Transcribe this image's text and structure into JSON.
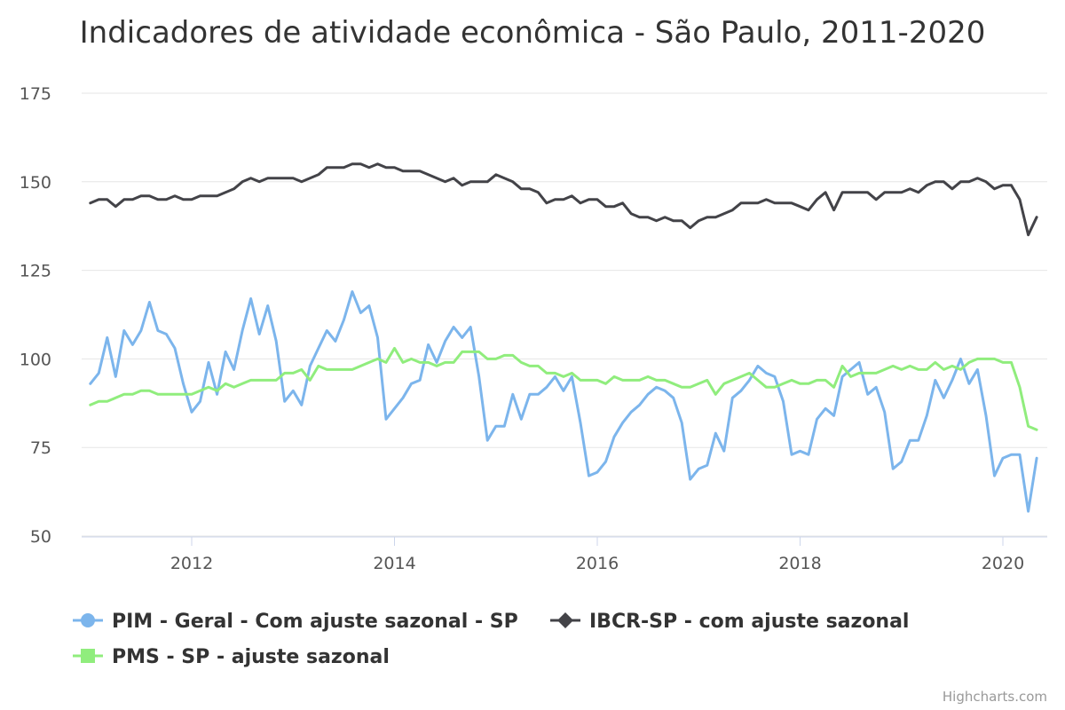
{
  "chart_data": {
    "type": "line",
    "title": "Indicadores de atividade econômica - São Paulo, 2011-2020",
    "x_start": "2011-01",
    "x_ticks": [
      "2012",
      "2014",
      "2016",
      "2018",
      "2020"
    ],
    "y_ticks": [
      50,
      75,
      100,
      125,
      150,
      175
    ],
    "ylim": [
      50,
      175
    ],
    "grid": true,
    "legend_position": "bottom",
    "credits": "Highcharts.com",
    "series": [
      {
        "name": "PIM - Geral - Com ajuste sazonal - SP",
        "color": "#7cb5ec",
        "marker": "circle",
        "values": [
          93,
          96,
          106,
          95,
          108,
          104,
          108,
          116,
          108,
          107,
          103,
          93,
          85,
          88,
          99,
          90,
          102,
          97,
          108,
          117,
          107,
          115,
          105,
          88,
          91,
          87,
          98,
          103,
          108,
          105,
          111,
          119,
          113,
          115,
          106,
          83,
          86,
          89,
          93,
          94,
          104,
          99,
          105,
          109,
          106,
          109,
          95,
          77,
          81,
          81,
          90,
          83,
          90,
          90,
          92,
          95,
          91,
          95,
          82,
          67,
          68,
          71,
          78,
          82,
          85,
          87,
          90,
          92,
          91,
          89,
          82,
          66,
          69,
          70,
          79,
          74,
          89,
          91,
          94,
          98,
          96,
          95,
          88,
          73,
          74,
          73,
          83,
          86,
          84,
          95,
          97,
          99,
          90,
          92,
          85,
          69,
          71,
          77,
          77,
          84,
          94,
          89,
          94,
          100,
          93,
          97,
          84,
          67,
          72,
          73,
          73,
          57,
          72
        ]
      },
      {
        "name": "IBCR-SP - com ajuste sazonal",
        "color": "#434348",
        "marker": "diamond",
        "values": [
          144,
          145,
          145,
          143,
          145,
          145,
          146,
          146,
          145,
          145,
          146,
          145,
          145,
          146,
          146,
          146,
          147,
          148,
          150,
          151,
          150,
          151,
          151,
          151,
          151,
          150,
          151,
          152,
          154,
          154,
          154,
          155,
          155,
          154,
          155,
          154,
          154,
          153,
          153,
          153,
          152,
          151,
          150,
          151,
          149,
          150,
          150,
          150,
          152,
          151,
          150,
          148,
          148,
          147,
          144,
          145,
          145,
          146,
          144,
          145,
          145,
          143,
          143,
          144,
          141,
          140,
          140,
          139,
          140,
          139,
          139,
          137,
          139,
          140,
          140,
          141,
          142,
          144,
          144,
          144,
          145,
          144,
          144,
          144,
          143,
          142,
          145,
          147,
          142,
          147,
          147,
          147,
          147,
          145,
          147,
          147,
          147,
          148,
          147,
          149,
          150,
          150,
          148,
          150,
          150,
          151,
          150,
          148,
          149,
          149,
          145,
          135,
          140
        ]
      },
      {
        "name": "PMS - SP - ajuste sazonal",
        "color": "#90ed7d",
        "marker": "square",
        "values": [
          87,
          88,
          88,
          89,
          90,
          90,
          91,
          91,
          90,
          90,
          90,
          90,
          90,
          91,
          92,
          91,
          93,
          92,
          93,
          94,
          94,
          94,
          94,
          96,
          96,
          97,
          94,
          98,
          97,
          97,
          97,
          97,
          98,
          99,
          100,
          99,
          103,
          99,
          100,
          99,
          99,
          98,
          99,
          99,
          102,
          102,
          102,
          100,
          100,
          101,
          101,
          99,
          98,
          98,
          96,
          96,
          95,
          96,
          94,
          94,
          94,
          93,
          95,
          94,
          94,
          94,
          95,
          94,
          94,
          93,
          92,
          92,
          93,
          94,
          90,
          93,
          94,
          95,
          96,
          94,
          92,
          92,
          93,
          94,
          93,
          93,
          94,
          94,
          92,
          98,
          95,
          96,
          96,
          96,
          97,
          98,
          97,
          98,
          97,
          97,
          99,
          97,
          98,
          97,
          99,
          100,
          100,
          100,
          99,
          99,
          92,
          81,
          80
        ]
      }
    ]
  }
}
